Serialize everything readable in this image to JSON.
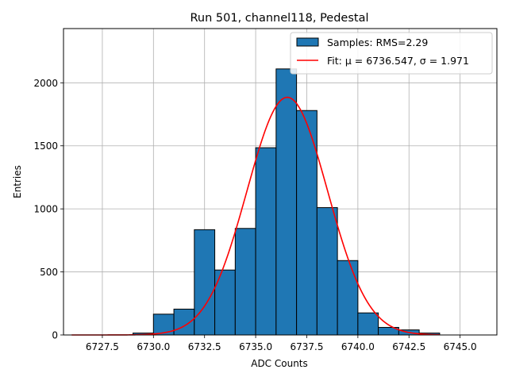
{
  "chart_data": {
    "type": "bar",
    "title": "Run 501, channel118, Pedestal",
    "xlabel": "ADC Counts",
    "ylabel": "Entries",
    "xlim": [
      6725.6,
      6746.8
    ],
    "ylim": [
      0,
      2430
    ],
    "xticks": [
      "6727.5",
      "6730.0",
      "6732.5",
      "6735.0",
      "6737.5",
      "6740.0",
      "6742.5",
      "6745.0"
    ],
    "xtick_values": [
      6727.5,
      6730.0,
      6732.5,
      6735.0,
      6737.5,
      6740.0,
      6742.5,
      6745.0
    ],
    "yticks": [
      "0",
      "500",
      "1000",
      "1500",
      "2000"
    ],
    "ytick_values": [
      0,
      500,
      1000,
      1500,
      2000
    ],
    "grid": true,
    "legend_position": "top-right",
    "histogram": {
      "name": "Samples: RMS=2.29",
      "color": "#1f77b4",
      "edge_color": "#000000",
      "bin_width": 1,
      "bin_lefts": [
        6729,
        6730,
        6731,
        6732,
        6733,
        6734,
        6735,
        6736,
        6737,
        6738,
        6739,
        6740,
        6741,
        6742,
        6743
      ],
      "values": [
        15,
        165,
        205,
        835,
        515,
        845,
        1485,
        2110,
        1780,
        1010,
        590,
        175,
        60,
        40,
        15
      ]
    },
    "fit": {
      "name": "Fit: μ = 6736.547, σ = 1.971",
      "color": "#ff0000",
      "mu": 6736.547,
      "sigma": 1.971,
      "amplitude": 1885,
      "x_range": [
        6726.0,
        6744.0
      ]
    }
  }
}
